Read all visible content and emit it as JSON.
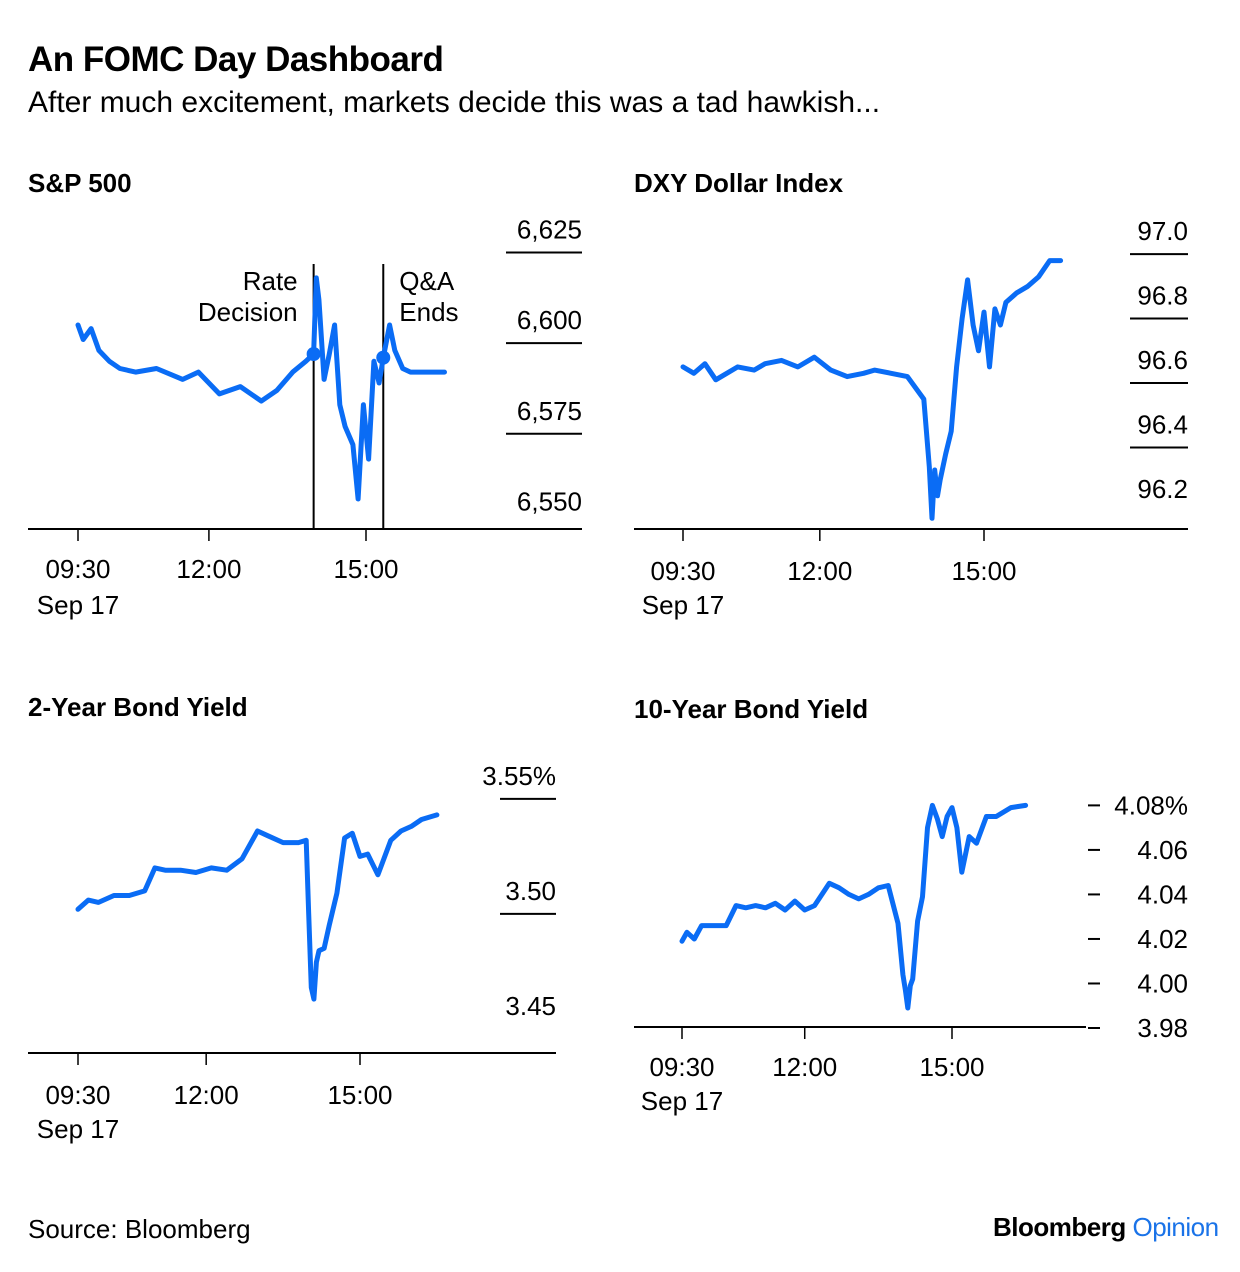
{
  "header": {
    "title": "An FOMC Day Dashboard",
    "subtitle": "After much excitement, markets decide this was a tad hawkish..."
  },
  "footer": {
    "source": "Source: Bloomberg",
    "brand_main": "Bloomberg",
    "brand_accent": "Opinion"
  },
  "colors": {
    "line": "#0a6cf5",
    "axis": "#000000"
  },
  "chart_data": [
    {
      "id": "spx",
      "type": "line",
      "title": "S&P 500",
      "ylim": [
        6549,
        6629
      ],
      "y_ticks": [
        "6,625",
        "6,600",
        "6,575",
        "6,550"
      ],
      "y_tick_values": [
        6625,
        6600,
        6575,
        6550
      ],
      "x_ticks": [
        "09:30",
        "12:00",
        "15:00"
      ],
      "x_tick_values": [
        9.5,
        12,
        15
      ],
      "x_date": "Sep 17",
      "annotations": [
        {
          "label_lines": [
            "Rate",
            "Decision"
          ],
          "x": 14.0
        },
        {
          "label_lines": [
            "Q&A",
            "Ends"
          ],
          "x": 15.33
        }
      ],
      "series": [
        {
          "x": [
            9.5,
            9.6,
            9.75,
            9.9,
            10.1,
            10.3,
            10.6,
            11.0,
            11.5,
            11.8,
            12.2,
            12.6,
            13.0,
            13.3,
            13.6,
            13.85,
            14.0,
            14.05,
            14.1,
            14.2,
            14.3,
            14.4,
            14.5,
            14.6,
            14.75,
            14.85,
            14.95,
            15.05,
            15.15,
            15.25,
            15.33,
            15.45,
            15.55,
            15.7,
            15.85,
            16.0,
            16.5
          ],
          "y": [
            6605,
            6601,
            6604,
            6598,
            6595,
            6593,
            6592,
            6593,
            6590,
            6592,
            6586,
            6588,
            6584,
            6587,
            6592,
            6595,
            6597,
            6618,
            6612,
            6590,
            6597,
            6605,
            6583,
            6577,
            6572,
            6557,
            6583,
            6568,
            6595,
            6589,
            6596,
            6605,
            6598,
            6593,
            6592,
            6592,
            6592
          ]
        }
      ]
    },
    {
      "id": "dxy",
      "type": "line",
      "title": "DXY Dollar Index",
      "ylim": [
        96.15,
        97.05
      ],
      "y_ticks": [
        "97.0",
        "96.8",
        "96.6",
        "96.4",
        "96.2"
      ],
      "y_tick_values": [
        97.0,
        96.8,
        96.6,
        96.4,
        96.2
      ],
      "x_ticks": [
        "09:30",
        "12:00",
        "15:00"
      ],
      "x_tick_values": [
        9.5,
        12,
        15
      ],
      "x_date": "Sep 17",
      "series": [
        {
          "x": [
            9.5,
            9.7,
            9.9,
            10.1,
            10.3,
            10.5,
            10.8,
            11.0,
            11.3,
            11.6,
            11.9,
            12.2,
            12.5,
            12.8,
            13.0,
            13.3,
            13.6,
            13.9,
            14.0,
            14.05,
            14.1,
            14.15,
            14.2,
            14.3,
            14.4,
            14.5,
            14.6,
            14.7,
            14.8,
            14.9,
            15.0,
            15.1,
            15.2,
            15.3,
            15.4,
            15.6,
            15.8,
            16.0,
            16.2,
            16.4
          ],
          "y": [
            96.65,
            96.63,
            96.66,
            96.61,
            96.63,
            96.65,
            96.64,
            96.66,
            96.67,
            96.65,
            96.68,
            96.64,
            96.62,
            96.63,
            96.64,
            96.63,
            96.62,
            96.55,
            96.34,
            96.18,
            96.33,
            96.25,
            96.3,
            96.38,
            96.45,
            96.65,
            96.8,
            96.92,
            96.78,
            96.7,
            96.82,
            96.65,
            96.83,
            96.78,
            96.85,
            96.88,
            96.9,
            96.93,
            96.98,
            96.98
          ]
        }
      ]
    },
    {
      "id": "us2y",
      "type": "line",
      "title": "2-Year Bond Yield",
      "ylim": [
        3.44,
        3.566
      ],
      "y_ticks": [
        "3.55%",
        "3.50",
        "3.45"
      ],
      "y_tick_values": [
        3.55,
        3.5,
        3.45
      ],
      "x_ticks": [
        "09:30",
        "12:00",
        "15:00"
      ],
      "x_tick_values": [
        9.5,
        12,
        15
      ],
      "x_date": "Sep 17",
      "series": [
        {
          "x": [
            9.5,
            9.7,
            9.9,
            10.2,
            10.5,
            10.8,
            11.0,
            11.2,
            11.5,
            11.8,
            12.1,
            12.4,
            12.7,
            13.0,
            13.2,
            13.5,
            13.8,
            13.95,
            14.0,
            14.05,
            14.1,
            14.15,
            14.2,
            14.3,
            14.4,
            14.55,
            14.7,
            14.85,
            15.0,
            15.15,
            15.35,
            15.6,
            15.8,
            16.0,
            16.2,
            16.5
          ],
          "y": [
            3.502,
            3.506,
            3.505,
            3.508,
            3.508,
            3.51,
            3.52,
            3.519,
            3.519,
            3.518,
            3.52,
            3.519,
            3.524,
            3.536,
            3.534,
            3.531,
            3.531,
            3.532,
            3.5,
            3.468,
            3.463,
            3.479,
            3.484,
            3.485,
            3.495,
            3.509,
            3.533,
            3.535,
            3.525,
            3.526,
            3.517,
            3.532,
            3.536,
            3.538,
            3.541,
            3.543
          ]
        }
      ]
    },
    {
      "id": "us10y",
      "type": "line",
      "title": "10-Year Bond Yield",
      "ylim": [
        3.98,
        4.095
      ],
      "y_ticks": [
        "4.08%",
        "4.06",
        "4.04",
        "4.02",
        "4.00",
        "3.98"
      ],
      "y_tick_values": [
        4.08,
        4.06,
        4.04,
        4.02,
        4.0,
        3.98
      ],
      "x_ticks": [
        "09:30",
        "12:00",
        "15:00"
      ],
      "x_tick_values": [
        9.5,
        12,
        15
      ],
      "x_date": "Sep 17",
      "series": [
        {
          "x": [
            9.5,
            9.6,
            9.75,
            9.9,
            10.1,
            10.4,
            10.6,
            10.8,
            11.0,
            11.2,
            11.4,
            11.6,
            11.8,
            12.0,
            12.2,
            12.5,
            12.7,
            12.9,
            13.1,
            13.3,
            13.5,
            13.7,
            13.9,
            14.0,
            14.05,
            14.1,
            14.15,
            14.2,
            14.3,
            14.4,
            14.5,
            14.6,
            14.7,
            14.8,
            14.9,
            15.0,
            15.1,
            15.2,
            15.35,
            15.5,
            15.7,
            15.9,
            16.2,
            16.5
          ],
          "y": [
            4.019,
            4.023,
            4.02,
            4.026,
            4.026,
            4.026,
            4.035,
            4.034,
            4.035,
            4.034,
            4.036,
            4.033,
            4.037,
            4.033,
            4.035,
            4.045,
            4.043,
            4.04,
            4.038,
            4.04,
            4.043,
            4.044,
            4.027,
            4.004,
            3.997,
            3.989,
            3.999,
            4.002,
            4.028,
            4.039,
            4.07,
            4.08,
            4.074,
            4.066,
            4.075,
            4.079,
            4.07,
            4.05,
            4.066,
            4.063,
            4.075,
            4.075,
            4.079,
            4.08
          ]
        }
      ]
    }
  ]
}
